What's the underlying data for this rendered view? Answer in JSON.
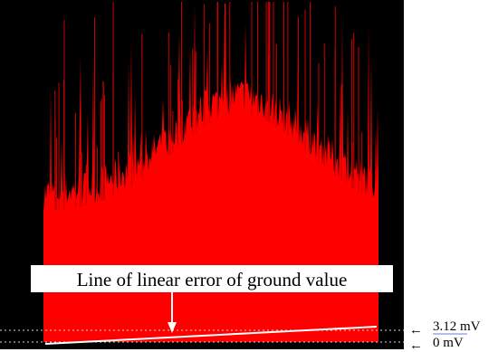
{
  "annotation": {
    "label": "Line of linear error of ground value",
    "upper_level": "3.12 mV",
    "lower_level": "0 mV"
  }
}
